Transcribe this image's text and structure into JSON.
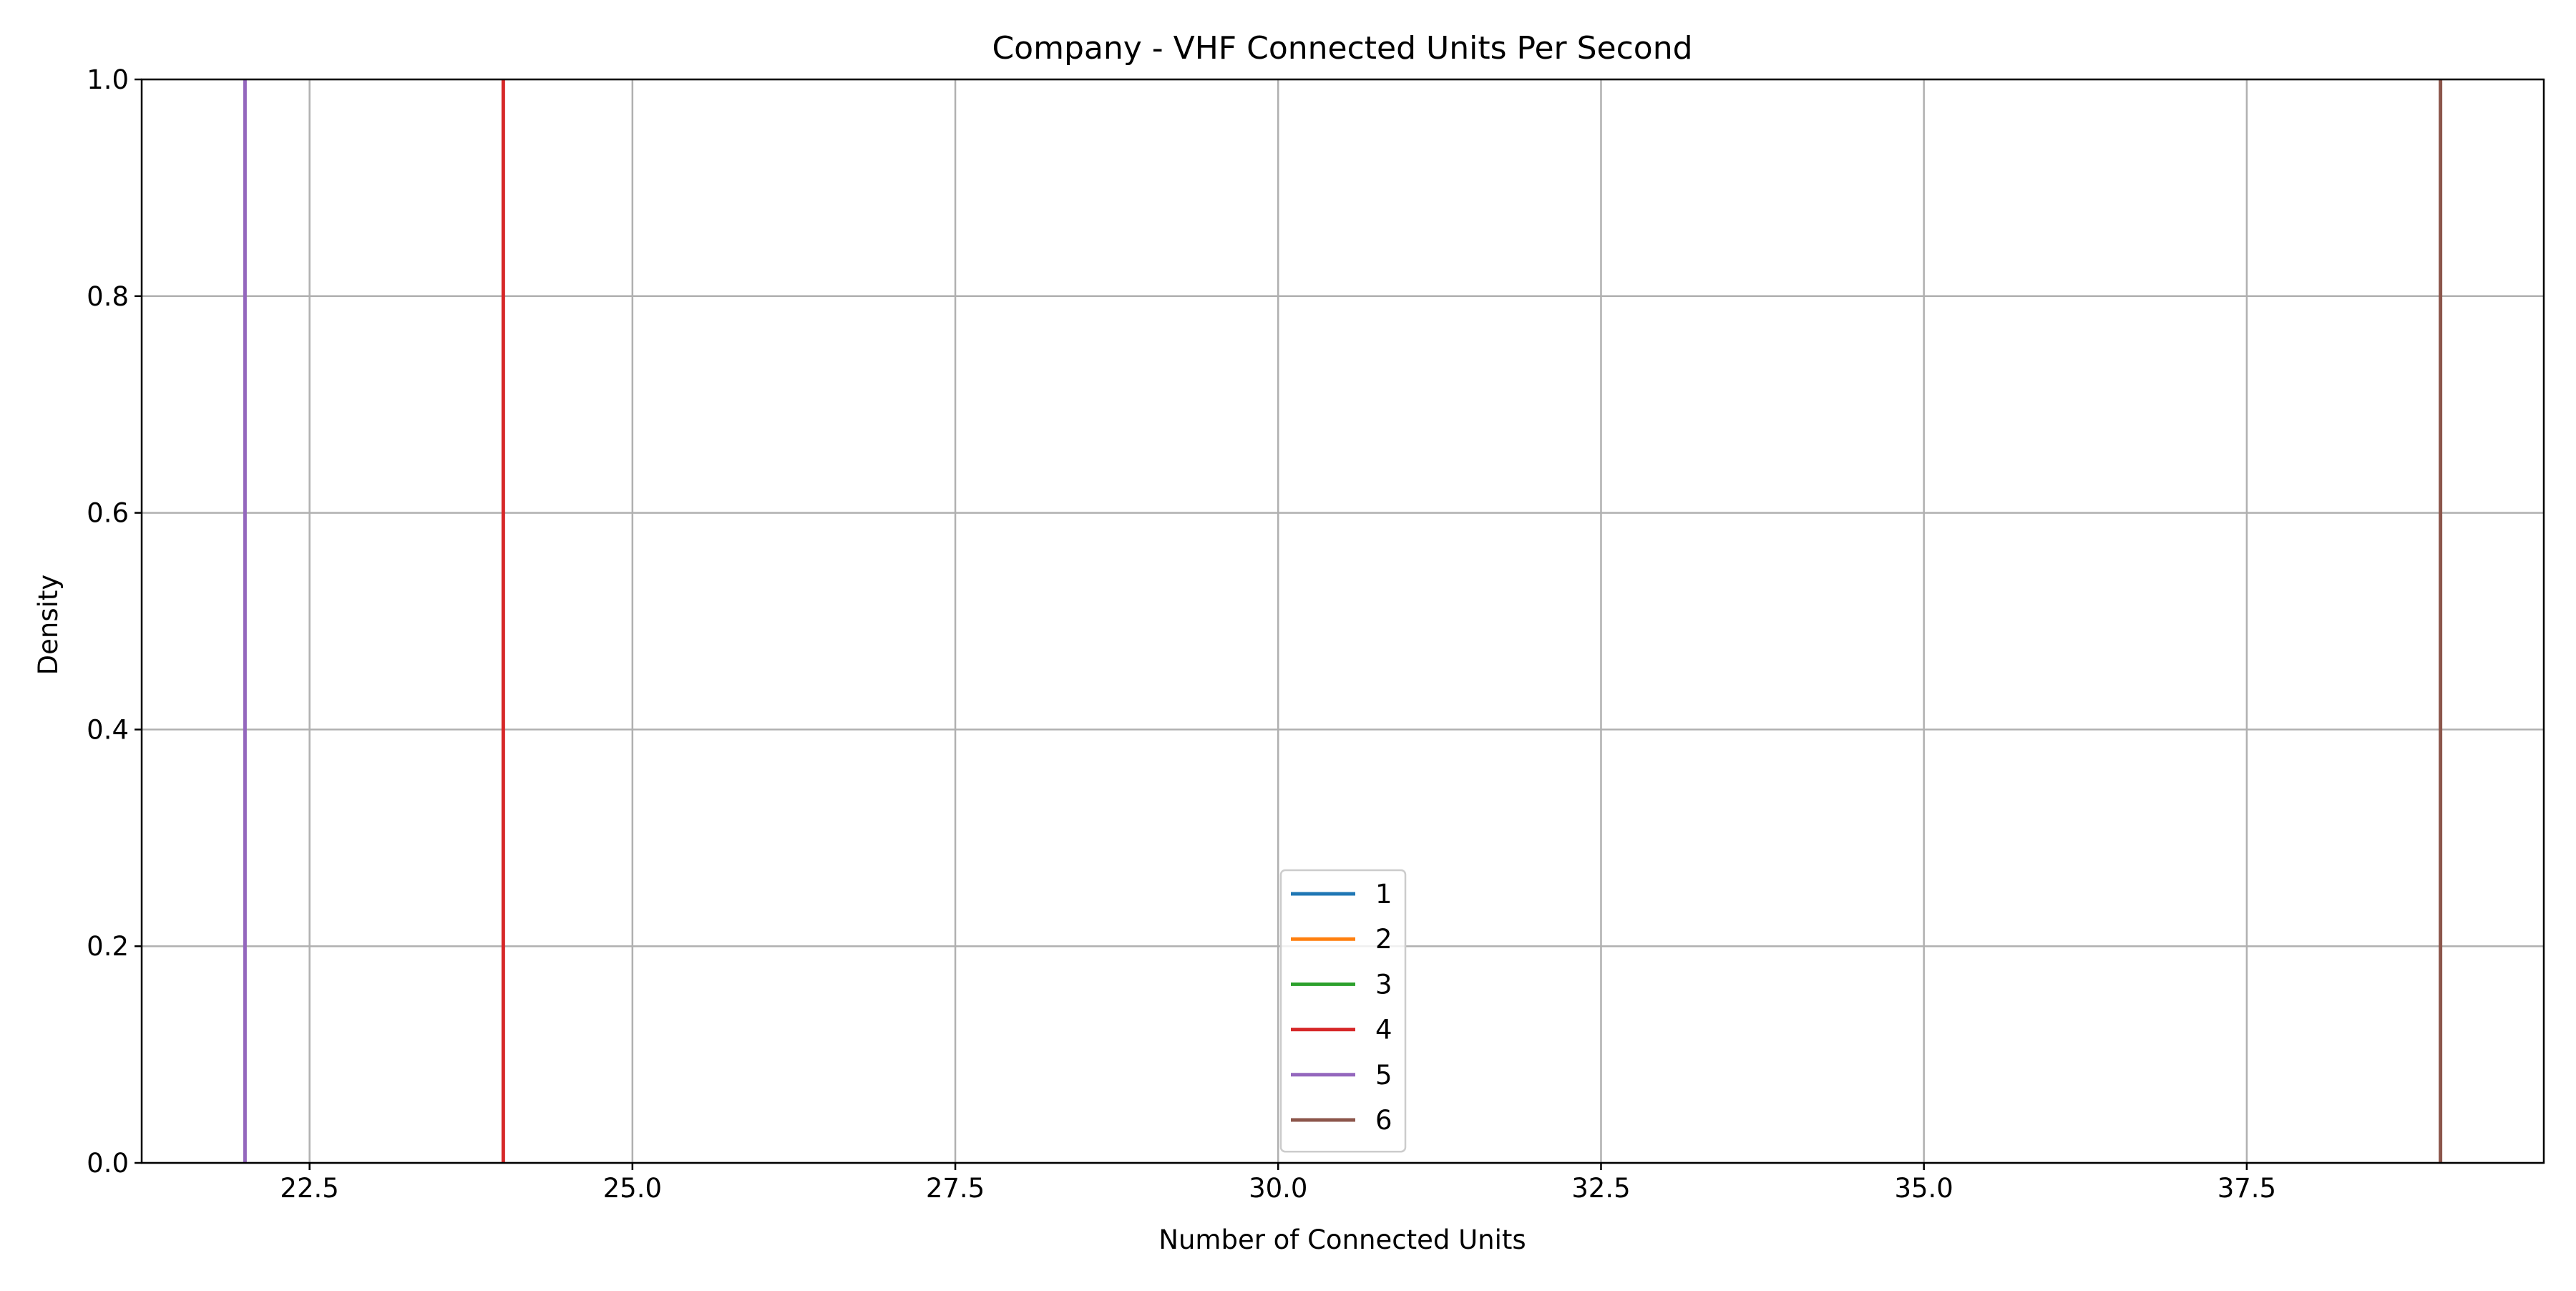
{
  "chart_data": {
    "type": "line",
    "title": "Company - VHF Connected Units Per Second",
    "xlabel": "Number of Connected Units",
    "ylabel": "Density",
    "xlim": [
      21.2,
      39.8
    ],
    "ylim": [
      0.0,
      1.0
    ],
    "x_ticks": [
      {
        "value": 22.5,
        "label": "22.5"
      },
      {
        "value": 25.0,
        "label": "25.0"
      },
      {
        "value": 27.5,
        "label": "27.5"
      },
      {
        "value": 30.0,
        "label": "30.0"
      },
      {
        "value": 32.5,
        "label": "32.5"
      },
      {
        "value": 35.0,
        "label": "35.0"
      },
      {
        "value": 37.5,
        "label": "37.5"
      }
    ],
    "y_ticks": [
      {
        "value": 0.0,
        "label": "0.0"
      },
      {
        "value": 0.2,
        "label": "0.2"
      },
      {
        "value": 0.4,
        "label": "0.4"
      },
      {
        "value": 0.6,
        "label": "0.6"
      },
      {
        "value": 0.8,
        "label": "0.8"
      },
      {
        "value": 1.0,
        "label": "1.0"
      }
    ],
    "grid": true,
    "legend_position": "bottom-center",
    "series": [
      {
        "name": "1",
        "color": "#1f77b4",
        "x": [],
        "y": []
      },
      {
        "name": "2",
        "color": "#ff7f0e",
        "x": [],
        "y": []
      },
      {
        "name": "3",
        "color": "#2ca02c",
        "x": [],
        "y": []
      },
      {
        "name": "4",
        "color": "#d62728",
        "x": [
          24.0,
          24.0
        ],
        "y": [
          0.0,
          1.0
        ]
      },
      {
        "name": "5",
        "color": "#9467bd",
        "x": [
          22.0,
          22.0
        ],
        "y": [
          0.0,
          1.0
        ]
      },
      {
        "name": "6",
        "color": "#8c564b",
        "x": [
          39.0,
          39.0
        ],
        "y": [
          0.0,
          1.0
        ]
      }
    ]
  }
}
